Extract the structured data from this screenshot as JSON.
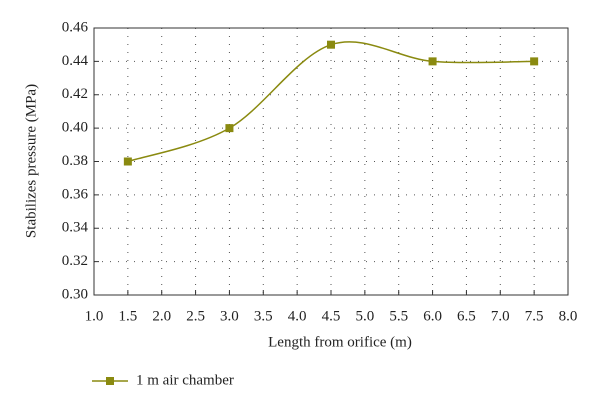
{
  "chart_data": {
    "type": "line",
    "x_label": "Length from orifice (m)",
    "y_label": "Stabilizes pressure (MPa)",
    "x": [
      1.5,
      3.0,
      4.5,
      6.0,
      7.5
    ],
    "series": [
      {
        "name": "1 m air chamber",
        "color": "#8a8a10",
        "values": [
          0.38,
          0.4,
          0.45,
          0.44,
          0.44
        ]
      }
    ],
    "xlim": [
      1.0,
      8.0
    ],
    "xticks": [
      {
        "value": 1,
        "label": "1.0"
      },
      1.5,
      {
        "value": 2,
        "label": "2.0"
      },
      2.5,
      {
        "value": 3,
        "label": "3.0"
      },
      3.5,
      {
        "value": 4,
        "label": "4.0"
      },
      4.5,
      {
        "value": 5,
        "label": "5.0"
      },
      5.5,
      {
        "value": 6,
        "label": "6.0"
      },
      6.5,
      {
        "value": 7,
        "label": "7.0"
      },
      7.5,
      {
        "value": 8,
        "label": "8.0"
      }
    ],
    "ylim": [
      0.3,
      0.46
    ],
    "yticks": [
      {
        "value": 0.3,
        "label": "0.30"
      },
      0.32,
      0.34,
      0.36,
      0.38,
      {
        "value": 0.4,
        "label": "0.40"
      },
      0.42,
      0.44,
      0.46
    ],
    "grid": true,
    "legend": "bottom-left"
  }
}
